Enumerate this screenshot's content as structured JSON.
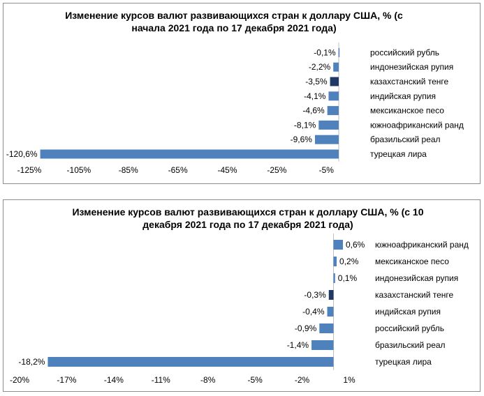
{
  "colors": {
    "bar": "#4f81bd",
    "highlight": "#1f3864",
    "border": "#8c8c8c"
  },
  "chart_data": [
    {
      "type": "bar",
      "orientation": "horizontal",
      "title_lines": [
        "Изменение курсов валют развивающихся стран к доллару США, % (с",
        "начала 2021 года по 17 декабря 2021 года)"
      ],
      "categories": [
        "российский рубль",
        "индонезийская рупия",
        "казахстанский тенге",
        "индийская рупия",
        "мексиканское песо",
        "южноафриканский ранд",
        "бразильский реал",
        "турецкая лира"
      ],
      "values": [
        -0.1,
        -2.2,
        -3.5,
        -4.1,
        -4.6,
        -8.1,
        -9.6,
        -120.6
      ],
      "value_labels": [
        "-0,1%",
        "-2,2%",
        "-3,5%",
        "-4,1%",
        "-4,6%",
        "-8,1%",
        "-9,6%",
        "-120,6%"
      ],
      "highlight_index": 2,
      "xlim": [
        -125,
        0
      ],
      "xticks": [
        -125,
        -105,
        -85,
        -65,
        -45,
        -25,
        -5
      ],
      "xtick_labels": [
        "-125%",
        "-105%",
        "-85%",
        "-65%",
        "-45%",
        "-25%",
        "-5%"
      ],
      "grid": false
    },
    {
      "type": "bar",
      "orientation": "horizontal",
      "title_lines": [
        "Изменение курсов валют развивающихся стран к доллару США, % (с 10",
        "декабря 2021 года по 17 декабря 2021 года)"
      ],
      "categories": [
        "южноафриканский ранд",
        "мексиканское песо",
        "индонезийская рупия",
        "казахстанский тенге",
        "индийская рупия",
        "российский рубль",
        "бразильский реал",
        "турецкая лира"
      ],
      "values": [
        0.6,
        0.2,
        0.1,
        -0.3,
        -0.4,
        -0.9,
        -1.4,
        -18.2
      ],
      "value_labels": [
        "0,6%",
        "0,2%",
        "0,1%",
        "-0,3%",
        "-0,4%",
        "-0,9%",
        "-1,4%",
        "-18,2%"
      ],
      "highlight_index": 3,
      "xlim": [
        -20,
        1
      ],
      "xticks": [
        -20,
        -17,
        -14,
        -11,
        -8,
        -5,
        -2,
        1
      ],
      "xtick_labels": [
        "-20%",
        "-17%",
        "-14%",
        "-11%",
        "-8%",
        "-5%",
        "-2%",
        "1%"
      ],
      "grid": false
    }
  ]
}
